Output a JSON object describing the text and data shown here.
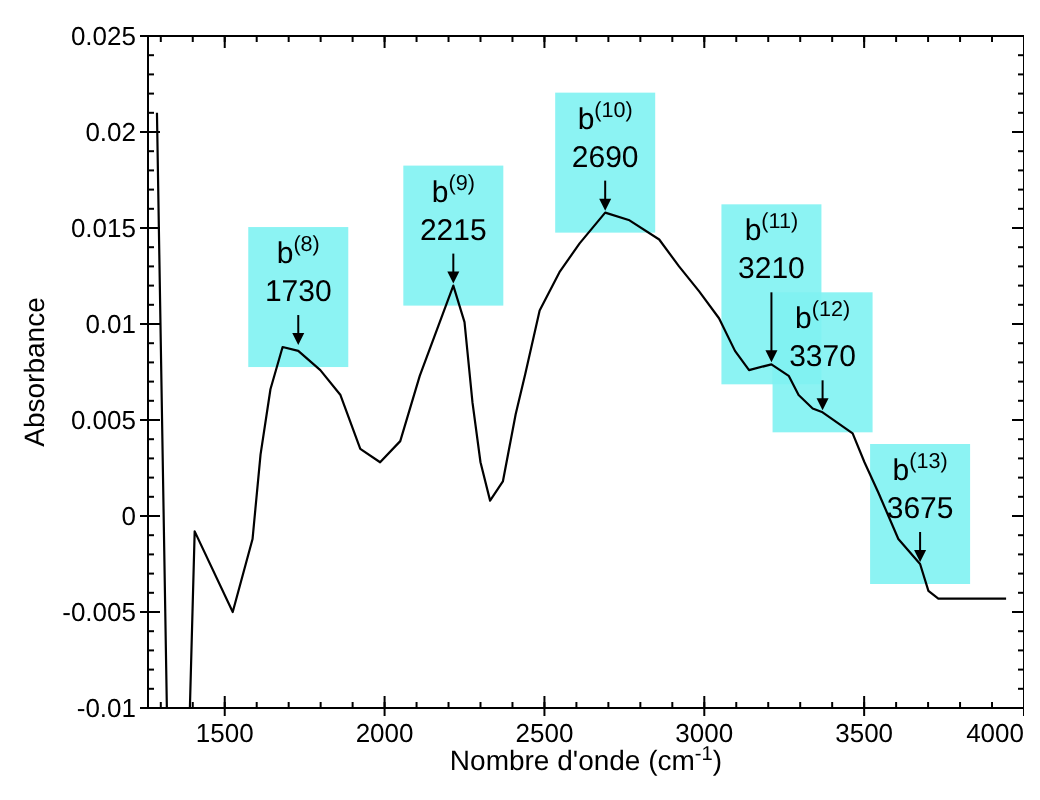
{
  "chart_data": {
    "type": "line",
    "xlabel": "Nombre d'onde (cm$^{-1}$)",
    "ylabel": "Absorbance",
    "xlim": [
      1260,
      4000
    ],
    "xticks": [
      1500,
      2000,
      2500,
      3000,
      3500,
      4000
    ],
    "ylim": [
      -0.01,
      0.025
    ],
    "yticks": [
      -0.01,
      -0.005,
      0,
      0.005,
      0.01,
      0.015,
      0.02,
      0.025
    ],
    "grid": false,
    "marker": "none",
    "line_style": "solid",
    "series": [
      {
        "color": "#000000",
        "x": [
          1288,
          1319,
          1391,
          1406,
          1525,
          1587,
          1612,
          1643,
          1681,
          1730,
          1799,
          1862,
          1924,
          1986,
          2049,
          2110,
          2215,
          2250,
          2275,
          2300,
          2330,
          2370,
          2410,
          2440,
          2485,
          2547,
          2610,
          2690,
          2766,
          2859,
          2921,
          2984,
          3046,
          3096,
          3140,
          3210,
          3264,
          3295,
          3339,
          3370,
          3464,
          3501,
          3545,
          3607,
          3675,
          3701,
          3732,
          3856,
          3944
        ],
        "values": [
          0.021,
          -0.01,
          -0.01,
          -0.0008,
          -0.005,
          -0.0012,
          0.0032,
          0.0066,
          0.0088,
          0.0086,
          0.0076,
          0.0063,
          0.0035,
          0.0028,
          0.0039,
          0.0073,
          0.012,
          0.0101,
          0.0059,
          0.0028,
          0.0008,
          0.0018,
          0.0053,
          0.0074,
          0.0107,
          0.0127,
          0.0142,
          0.0158,
          0.0154,
          0.0144,
          0.013,
          0.0117,
          0.0103,
          0.0086,
          0.0076,
          0.0079,
          0.0073,
          0.0063,
          0.0056,
          0.0054,
          0.0043,
          0.0028,
          0.0012,
          -0.0012,
          -0.0025,
          -0.0039,
          -0.0043,
          -0.0043,
          -0.0043
        ]
      }
    ],
    "annotations": [
      {
        "text": "b$^{(8)}$\n1730",
        "x": 1730,
        "y": 0.0088
      },
      {
        "text": "b$^{(9)}$\n2215",
        "x": 2215,
        "y": 0.012
      },
      {
        "text": "b$^{(10)}$\n2690",
        "x": 2690,
        "y": 0.0158
      },
      {
        "text": "b$^{(11)}$\n3210",
        "x": 3210,
        "y": 0.0079
      },
      {
        "text": "b$^{(12)}$\n3370",
        "x": 3370,
        "y": 0.0054
      },
      {
        "text": "b$^{(13)}$\n3675",
        "x": 3675,
        "y": -0.0025
      }
    ]
  }
}
